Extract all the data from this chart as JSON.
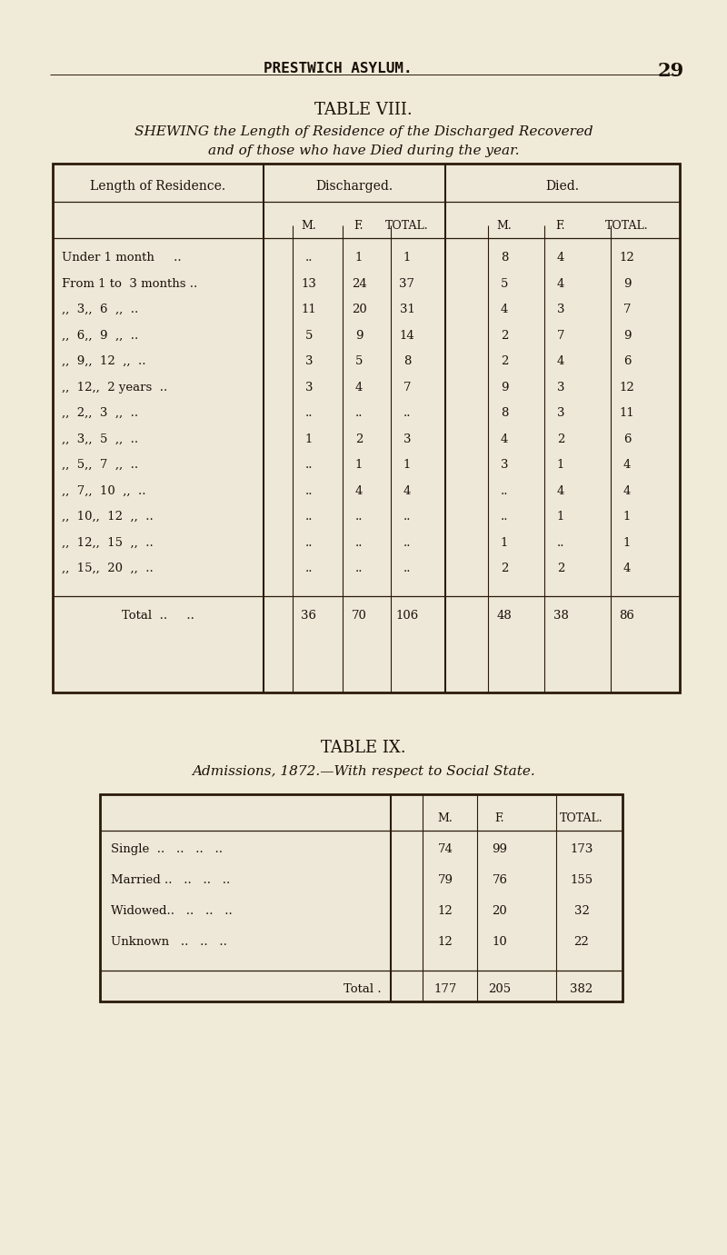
{
  "bg_color": "#f0ead8",
  "table_bg": "#ede8d8",
  "text_color": "#1a1008",
  "page_number": "29",
  "header": "PRESTWICH ASYLUM.",
  "table8_title": "TABLE VIII.",
  "table8_subtitle1": "SHEWING the Length of Residence of the Discharged Recovered",
  "table8_subtitle2": "and of those who have Died during the year.",
  "table8_col_headers": [
    "Length of Residence.",
    "Discharged.",
    "Died."
  ],
  "table8_sub_headers": [
    "M.",
    "F.",
    "TOTAL.",
    "M.",
    "F.",
    "TOTAL."
  ],
  "table8_rows": [
    [
      "Under 1 month     ..",
      "..",
      "1",
      "1",
      "8",
      "4",
      "12"
    ],
    [
      "From 1 to  3 months ..",
      "13",
      "24",
      "37",
      "5",
      "4",
      "9"
    ],
    [
      ",,  3,,  6  ,,  ..",
      "11",
      "20",
      "31",
      "4",
      "3",
      "7"
    ],
    [
      ",,  6,,  9  ,,  ..",
      "5",
      "9",
      "14",
      "2",
      "7",
      "9"
    ],
    [
      ",,  9,,  12  ,,  ..",
      "3",
      "5",
      "8",
      "2",
      "4",
      "6"
    ],
    [
      ",,  12,,  2 years  ..",
      "3",
      "4",
      "7",
      "9",
      "3",
      "12"
    ],
    [
      ",,  2,,  3  ,,  ..",
      "..",
      "..",
      "..",
      "8",
      "3",
      "11"
    ],
    [
      ",,  3,,  5  ,,  ..",
      "1",
      "2",
      "3",
      "4",
      "2",
      "6"
    ],
    [
      ",,  5,,  7  ,,  ..",
      "..",
      "1",
      "1",
      "3",
      "1",
      "4"
    ],
    [
      ",,  7,,  10  ,,  ..",
      "..",
      "4",
      "4",
      "..",
      "4",
      "4"
    ],
    [
      ",,  10,,  12  ,,  ..",
      "..",
      "..",
      "..",
      "..",
      "1",
      "1"
    ],
    [
      ",,  12,,  15  ,,  ..",
      "..",
      "..",
      "..",
      "1",
      "..",
      "1"
    ],
    [
      ",,  15,,  20  ,,  ..",
      "..",
      "..",
      "..",
      "2",
      "2",
      "4"
    ]
  ],
  "table8_total": [
    "Total  ..     ..",
    "36",
    "70",
    "106",
    "48",
    "38",
    "86"
  ],
  "table9_title": "TABLE IX.",
  "table9_subtitle": "Admissions, 1872.—With respect to Social State.",
  "table9_sub_headers": [
    "M.",
    "F.",
    "TOTAL."
  ],
  "table9_rows": [
    [
      "Single  ..   ..   ..   ..",
      "74",
      "99",
      "173"
    ],
    [
      "Married ..   ..   ..   ..",
      "79",
      "76",
      "155"
    ],
    [
      "Widowed..   ..   ..   ..",
      "12",
      "20",
      "32"
    ],
    [
      "Unknown   ..   ..   ..",
      "12",
      "10",
      "22"
    ]
  ],
  "table9_total": [
    "Total .",
    "177",
    "205",
    "382"
  ]
}
